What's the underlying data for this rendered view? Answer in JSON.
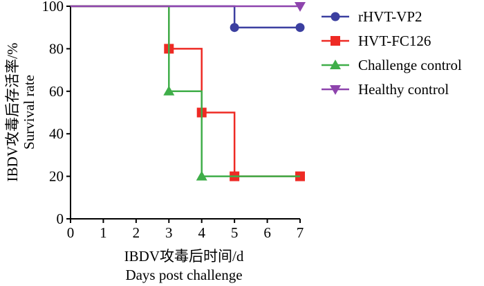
{
  "chart_data": {
    "type": "line",
    "xlabel": [
      "IBDV攻毒后时间/d",
      "Days post challenge"
    ],
    "ylabel": [
      "IBDV攻毒后存活率/%",
      "Survival rate"
    ],
    "xlim": [
      0,
      7
    ],
    "ylim": [
      0,
      100
    ],
    "x_ticks": [
      "0",
      "1",
      "2",
      "3",
      "4",
      "5",
      "6",
      "7"
    ],
    "y_ticks": [
      "0",
      "20",
      "40",
      "60",
      "80",
      "100"
    ],
    "grid": false,
    "legend_position": "top-right",
    "step": true,
    "series": [
      {
        "name": "rHVT-VP2",
        "color": "#3b3fa0",
        "marker": "circle",
        "line": [
          [
            0,
            100
          ],
          [
            5,
            100
          ],
          [
            5,
            90
          ],
          [
            7,
            90
          ]
        ],
        "points": [
          [
            5,
            90
          ],
          [
            7,
            90
          ]
        ]
      },
      {
        "name": "HVT-FC126",
        "color": "#ee2a24",
        "marker": "square",
        "line": [
          [
            0,
            100
          ],
          [
            3,
            100
          ],
          [
            3,
            80
          ],
          [
            4,
            80
          ],
          [
            4,
            50
          ],
          [
            5,
            50
          ],
          [
            5,
            20
          ],
          [
            7,
            20
          ]
        ],
        "points": [
          [
            3,
            80
          ],
          [
            4,
            50
          ],
          [
            5,
            20
          ],
          [
            7,
            20
          ]
        ]
      },
      {
        "name": "Challenge control",
        "color": "#3fae49",
        "marker": "triangle-up",
        "line": [
          [
            0,
            100
          ],
          [
            3,
            100
          ],
          [
            3,
            60
          ],
          [
            4,
            60
          ],
          [
            4,
            20
          ],
          [
            7,
            20
          ]
        ],
        "points": [
          [
            3,
            60
          ],
          [
            4,
            20
          ]
        ]
      },
      {
        "name": "Healthy control",
        "color": "#8e44ad",
        "marker": "triangle-down",
        "line": [
          [
            0,
            100
          ],
          [
            7,
            100
          ]
        ],
        "points": [
          [
            7,
            100
          ]
        ]
      }
    ]
  }
}
